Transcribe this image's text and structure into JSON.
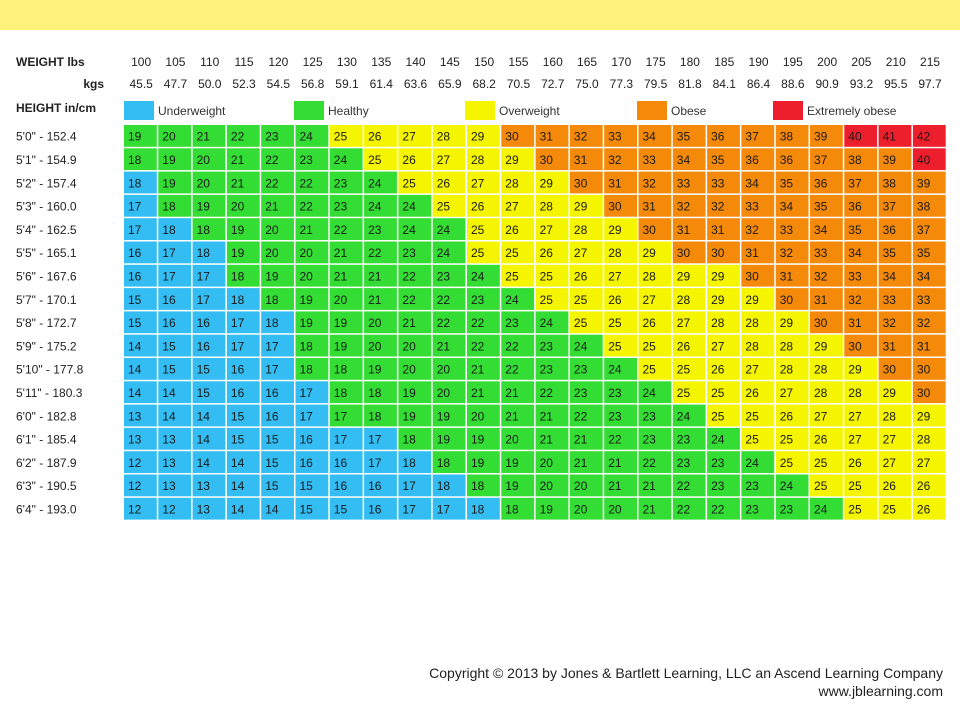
{
  "chart_data": {
    "type": "heatmap",
    "title": "",
    "weight_label_lbs": "WEIGHT lbs",
    "weight_label_kgs": "kgs",
    "height_label": "HEIGHT in/cm",
    "weights_lbs": [
      "100",
      "105",
      "110",
      "115",
      "120",
      "125",
      "130",
      "135",
      "140",
      "145",
      "150",
      "155",
      "160",
      "165",
      "170",
      "175",
      "180",
      "185",
      "190",
      "195",
      "200",
      "205",
      "210",
      "215"
    ],
    "weights_kgs": [
      "45.5",
      "47.7",
      "50.0",
      "52.3",
      "54.5",
      "56.8",
      "59.1",
      "61.4",
      "63.6",
      "65.9",
      "68.2",
      "70.5",
      "72.7",
      "75.0",
      "77.3",
      "79.5",
      "81.8",
      "84.1",
      "86.4",
      "88.6",
      "90.9",
      "93.2",
      "95.5",
      "97.7"
    ],
    "heights": [
      "5'0\" - 152.4",
      "5'1\" - 154.9",
      "5'2\" - 157.4",
      "5'3\" - 160.0",
      "5'4\" - 162.5",
      "5'5\" - 165.1",
      "5'6\" - 167.6",
      "5'7\" - 170.1",
      "5'8\" - 172.7",
      "5'9\" - 175.2",
      "5'10\" - 177.8",
      "5'11\" - 180.3",
      "6'0\" - 182.8",
      "6'1\" - 185.4",
      "6'2\" - 187.9",
      "6'3\" - 190.5",
      "6'4\" - 193.0"
    ],
    "legend": [
      {
        "label": "Underweight",
        "color": "#33bdf2"
      },
      {
        "label": "Healthy",
        "color": "#33dd33"
      },
      {
        "label": "Overweight",
        "color": "#f5f500"
      },
      {
        "label": "Obese",
        "color": "#f58a0a"
      },
      {
        "label": "Extremely obese",
        "color": "#ee1f2d"
      }
    ],
    "values": [
      [
        19,
        20,
        21,
        22,
        23,
        24,
        25,
        26,
        27,
        28,
        29,
        30,
        31,
        32,
        33,
        34,
        35,
        36,
        37,
        38,
        39,
        40,
        41,
        42
      ],
      [
        18,
        19,
        20,
        21,
        22,
        23,
        24,
        25,
        26,
        27,
        28,
        29,
        30,
        31,
        32,
        33,
        34,
        35,
        36,
        36,
        37,
        38,
        39,
        40
      ],
      [
        18,
        19,
        20,
        21,
        22,
        22,
        23,
        24,
        25,
        26,
        27,
        28,
        29,
        30,
        31,
        32,
        33,
        33,
        34,
        35,
        36,
        37,
        38,
        39
      ],
      [
        17,
        18,
        19,
        20,
        21,
        22,
        23,
        24,
        24,
        25,
        26,
        27,
        28,
        29,
        30,
        31,
        32,
        32,
        33,
        34,
        35,
        36,
        37,
        38
      ],
      [
        17,
        18,
        18,
        19,
        20,
        21,
        22,
        23,
        24,
        24,
        25,
        26,
        27,
        28,
        29,
        30,
        31,
        31,
        32,
        33,
        34,
        35,
        36,
        37
      ],
      [
        16,
        17,
        18,
        19,
        20,
        20,
        21,
        22,
        23,
        24,
        25,
        25,
        26,
        27,
        28,
        29,
        30,
        30,
        31,
        32,
        33,
        34,
        35,
        35
      ],
      [
        16,
        17,
        17,
        18,
        19,
        20,
        21,
        21,
        22,
        23,
        24,
        25,
        25,
        26,
        27,
        28,
        29,
        29,
        30,
        31,
        32,
        33,
        34,
        34
      ],
      [
        15,
        16,
        17,
        18,
        18,
        19,
        20,
        21,
        22,
        22,
        23,
        24,
        25,
        25,
        26,
        27,
        28,
        29,
        29,
        30,
        31,
        32,
        33,
        33
      ],
      [
        15,
        16,
        16,
        17,
        18,
        19,
        19,
        20,
        21,
        22,
        22,
        23,
        24,
        25,
        25,
        26,
        27,
        28,
        28,
        29,
        30,
        31,
        32,
        32
      ],
      [
        14,
        15,
        16,
        17,
        17,
        18,
        19,
        20,
        20,
        21,
        22,
        22,
        23,
        24,
        25,
        25,
        26,
        27,
        28,
        28,
        29,
        30,
        31,
        31
      ],
      [
        14,
        15,
        15,
        16,
        17,
        18,
        18,
        19,
        20,
        20,
        21,
        22,
        23,
        23,
        24,
        25,
        25,
        26,
        27,
        28,
        28,
        29,
        30,
        30
      ],
      [
        14,
        14,
        15,
        16,
        16,
        17,
        18,
        18,
        19,
        20,
        21,
        21,
        22,
        23,
        23,
        24,
        25,
        25,
        26,
        27,
        28,
        28,
        29,
        30
      ],
      [
        13,
        14,
        14,
        15,
        16,
        17,
        17,
        18,
        19,
        19,
        20,
        21,
        21,
        22,
        23,
        23,
        24,
        25,
        25,
        26,
        27,
        27,
        28,
        29
      ],
      [
        13,
        13,
        14,
        15,
        15,
        16,
        17,
        17,
        18,
        19,
        19,
        20,
        21,
        21,
        22,
        23,
        23,
        24,
        25,
        25,
        26,
        27,
        27,
        28
      ],
      [
        12,
        13,
        14,
        14,
        15,
        16,
        16,
        17,
        18,
        18,
        19,
        19,
        20,
        21,
        21,
        22,
        23,
        23,
        24,
        25,
        25,
        26,
        27,
        27
      ],
      [
        12,
        13,
        13,
        14,
        15,
        15,
        16,
        16,
        17,
        18,
        18,
        19,
        20,
        20,
        21,
        21,
        22,
        23,
        23,
        24,
        25,
        25,
        26,
        26
      ],
      [
        12,
        12,
        13,
        14,
        14,
        15,
        15,
        16,
        17,
        17,
        18,
        18,
        19,
        20,
        20,
        21,
        22,
        22,
        23,
        23,
        24,
        25,
        25,
        26
      ]
    ],
    "categories": [
      [
        "H",
        "H",
        "H",
        "H",
        "H",
        "H",
        "O",
        "O",
        "O",
        "O",
        "O",
        "B",
        "B",
        "B",
        "B",
        "B",
        "B",
        "B",
        "B",
        "B",
        "B",
        "E",
        "E",
        "E"
      ],
      [
        "H",
        "H",
        "H",
        "H",
        "H",
        "H",
        "H",
        "O",
        "O",
        "O",
        "O",
        "O",
        "B",
        "B",
        "B",
        "B",
        "B",
        "B",
        "B",
        "B",
        "B",
        "B",
        "B",
        "E"
      ],
      [
        "U",
        "H",
        "H",
        "H",
        "H",
        "H",
        "H",
        "H",
        "O",
        "O",
        "O",
        "O",
        "O",
        "B",
        "B",
        "B",
        "B",
        "B",
        "B",
        "B",
        "B",
        "B",
        "B",
        "B"
      ],
      [
        "U",
        "H",
        "H",
        "H",
        "H",
        "H",
        "H",
        "H",
        "H",
        "O",
        "O",
        "O",
        "O",
        "O",
        "B",
        "B",
        "B",
        "B",
        "B",
        "B",
        "B",
        "B",
        "B",
        "B"
      ],
      [
        "U",
        "U",
        "H",
        "H",
        "H",
        "H",
        "H",
        "H",
        "H",
        "H",
        "O",
        "O",
        "O",
        "O",
        "O",
        "B",
        "B",
        "B",
        "B",
        "B",
        "B",
        "B",
        "B",
        "B"
      ],
      [
        "U",
        "U",
        "U",
        "H",
        "H",
        "H",
        "H",
        "H",
        "H",
        "H",
        "O",
        "O",
        "O",
        "O",
        "O",
        "O",
        "B",
        "B",
        "B",
        "B",
        "B",
        "B",
        "B",
        "B"
      ],
      [
        "U",
        "U",
        "U",
        "H",
        "H",
        "H",
        "H",
        "H",
        "H",
        "H",
        "H",
        "O",
        "O",
        "O",
        "O",
        "O",
        "O",
        "O",
        "B",
        "B",
        "B",
        "B",
        "B",
        "B"
      ],
      [
        "U",
        "U",
        "U",
        "U",
        "H",
        "H",
        "H",
        "H",
        "H",
        "H",
        "H",
        "H",
        "O",
        "O",
        "O",
        "O",
        "O",
        "O",
        "O",
        "B",
        "B",
        "B",
        "B",
        "B"
      ],
      [
        "U",
        "U",
        "U",
        "U",
        "U",
        "H",
        "H",
        "H",
        "H",
        "H",
        "H",
        "H",
        "H",
        "O",
        "O",
        "O",
        "O",
        "O",
        "O",
        "O",
        "B",
        "B",
        "B",
        "B"
      ],
      [
        "U",
        "U",
        "U",
        "U",
        "U",
        "H",
        "H",
        "H",
        "H",
        "H",
        "H",
        "H",
        "H",
        "H",
        "O",
        "O",
        "O",
        "O",
        "O",
        "O",
        "O",
        "B",
        "B",
        "B"
      ],
      [
        "U",
        "U",
        "U",
        "U",
        "U",
        "H",
        "H",
        "H",
        "H",
        "H",
        "H",
        "H",
        "H",
        "H",
        "H",
        "O",
        "O",
        "O",
        "O",
        "O",
        "O",
        "O",
        "B",
        "B"
      ],
      [
        "U",
        "U",
        "U",
        "U",
        "U",
        "U",
        "H",
        "H",
        "H",
        "H",
        "H",
        "H",
        "H",
        "H",
        "H",
        "H",
        "O",
        "O",
        "O",
        "O",
        "O",
        "O",
        "O",
        "B"
      ],
      [
        "U",
        "U",
        "U",
        "U",
        "U",
        "U",
        "H",
        "H",
        "H",
        "H",
        "H",
        "H",
        "H",
        "H",
        "H",
        "H",
        "H",
        "O",
        "O",
        "O",
        "O",
        "O",
        "O",
        "O"
      ],
      [
        "U",
        "U",
        "U",
        "U",
        "U",
        "U",
        "U",
        "U",
        "H",
        "H",
        "H",
        "H",
        "H",
        "H",
        "H",
        "H",
        "H",
        "H",
        "O",
        "O",
        "O",
        "O",
        "O",
        "O"
      ],
      [
        "U",
        "U",
        "U",
        "U",
        "U",
        "U",
        "U",
        "U",
        "U",
        "H",
        "H",
        "H",
        "H",
        "H",
        "H",
        "H",
        "H",
        "H",
        "H",
        "O",
        "O",
        "O",
        "O",
        "O"
      ],
      [
        "U",
        "U",
        "U",
        "U",
        "U",
        "U",
        "U",
        "U",
        "U",
        "U",
        "H",
        "H",
        "H",
        "H",
        "H",
        "H",
        "H",
        "H",
        "H",
        "H",
        "O",
        "O",
        "O",
        "O"
      ],
      [
        "U",
        "U",
        "U",
        "U",
        "U",
        "U",
        "U",
        "U",
        "U",
        "U",
        "U",
        "H",
        "H",
        "H",
        "H",
        "H",
        "H",
        "H",
        "H",
        "H",
        "H",
        "O",
        "O",
        "O"
      ]
    ]
  },
  "copyright": {
    "line1": "Copyright © 2013 by Jones & Bartlett Learning, LLC an Ascend Learning Company",
    "line2": "www.jblearning.com"
  }
}
